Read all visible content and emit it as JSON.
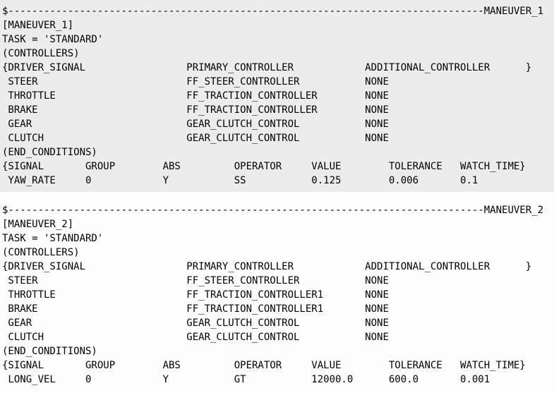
{
  "editor": {
    "background_color": "#fdfdfd",
    "highlight_color": "#ececec",
    "text_color": "#000000",
    "divider_prefix": "$",
    "divider_fill": "-",
    "divider_dash_count": 80
  },
  "maneuvers": [
    {
      "name": "MANEUVER_1",
      "bracket_label": "[MANEUVER_1]",
      "task_line": "TASK = 'STANDARD'",
      "controllers_section_label": "(CONTROLLERS)",
      "controllers_header": [
        "{DRIVER_SIGNAL",
        "PRIMARY_CONTROLLER",
        "ADDITIONAL_CONTROLLER",
        "}"
      ],
      "controllers": [
        {
          "signal": "STEER",
          "primary": "FF_STEER_CONTROLLER",
          "additional": "NONE"
        },
        {
          "signal": "THROTTLE",
          "primary": "FF_TRACTION_CONTROLLER",
          "additional": "NONE"
        },
        {
          "signal": "BRAKE",
          "primary": "FF_TRACTION_CONTROLLER",
          "additional": "NONE"
        },
        {
          "signal": "GEAR",
          "primary": "GEAR_CLUTCH_CONTROL",
          "additional": "NONE"
        },
        {
          "signal": "CLUTCH",
          "primary": "GEAR_CLUTCH_CONTROL",
          "additional": "NONE"
        }
      ],
      "end_conditions_section_label": "(END_CONDITIONS)",
      "end_conditions_header": [
        "{SIGNAL",
        "GROUP",
        "ABS",
        "OPERATOR",
        "VALUE",
        "TOLERANCE",
        "WATCH_TIME}"
      ],
      "end_conditions": [
        {
          "signal": "YAW_RATE",
          "group": "0",
          "abs": "Y",
          "operator": "SS",
          "value": "0.125",
          "tolerance": "0.006",
          "watch_time": "0.1"
        }
      ],
      "highlighted": true
    },
    {
      "name": "MANEUVER_2",
      "bracket_label": "[MANEUVER_2]",
      "task_line": "TASK = 'STANDARD'",
      "controllers_section_label": "(CONTROLLERS)",
      "controllers_header": [
        "{DRIVER_SIGNAL",
        "PRIMARY_CONTROLLER",
        "ADDITIONAL_CONTROLLER",
        "}"
      ],
      "controllers": [
        {
          "signal": "STEER",
          "primary": "FF_STEER_CONTROLLER",
          "additional": "NONE"
        },
        {
          "signal": "THROTTLE",
          "primary": "FF_TRACTION_CONTROLLER1",
          "additional": "NONE"
        },
        {
          "signal": "BRAKE",
          "primary": "FF_TRACTION_CONTROLLER1",
          "additional": "NONE"
        },
        {
          "signal": "GEAR",
          "primary": "GEAR_CLUTCH_CONTROL",
          "additional": "NONE"
        },
        {
          "signal": "CLUTCH",
          "primary": "GEAR_CLUTCH_CONTROL",
          "additional": "NONE"
        }
      ],
      "end_conditions_section_label": "(END_CONDITIONS)",
      "end_conditions_header": [
        "{SIGNAL",
        "GROUP",
        "ABS",
        "OPERATOR",
        "VALUE",
        "TOLERANCE",
        "WATCH_TIME}"
      ],
      "end_conditions": [
        {
          "signal": "LONG_VEL",
          "group": "0",
          "abs": "Y",
          "operator": "GT",
          "value": "12000.0",
          "tolerance": "600.0",
          "watch_time": "0.001"
        }
      ],
      "highlighted": false
    }
  ]
}
